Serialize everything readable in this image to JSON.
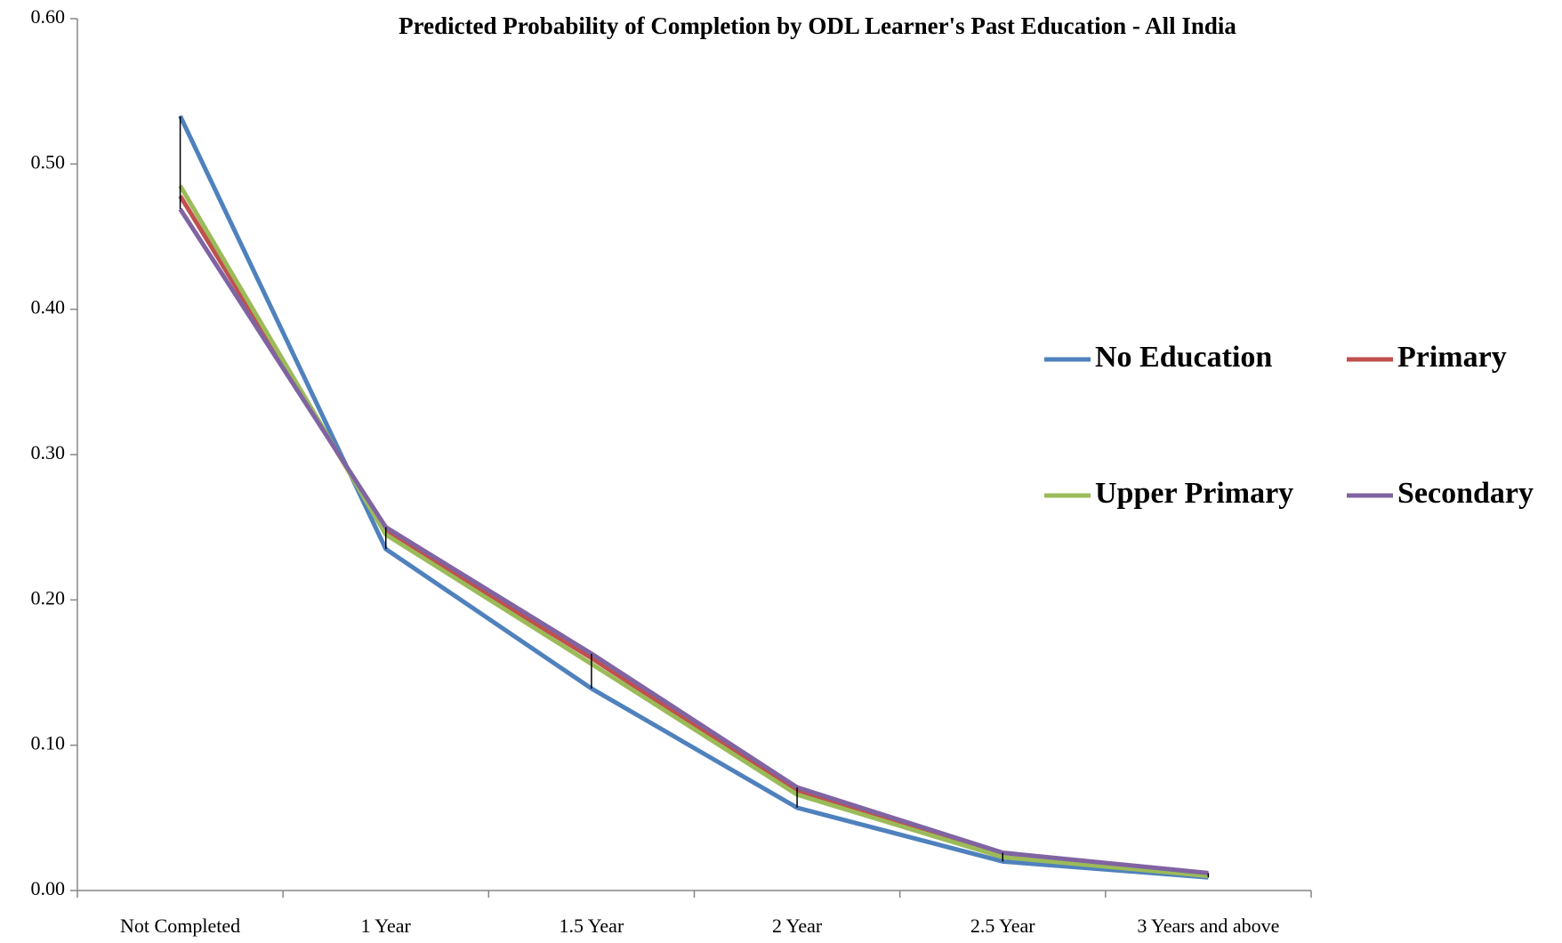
{
  "chart_data": {
    "type": "line",
    "title": "Predicted Probability of Completion by ODL Learner's Past Education - All India",
    "categories": [
      "Not Completed",
      "1 Year",
      "1.5 Year",
      "2 Year",
      "2.5 Year",
      "3 Years and above"
    ],
    "series": [
      {
        "name": "No Education",
        "color": "#4f81bd",
        "values": [
          0.533,
          0.235,
          0.139,
          0.057,
          0.02,
          0.009
        ]
      },
      {
        "name": "Primary",
        "color": "#c0504d",
        "values": [
          0.478,
          0.247,
          0.16,
          0.068,
          0.024,
          0.011
        ]
      },
      {
        "name": "Upper Primary",
        "color": "#9bbb59",
        "values": [
          0.485,
          0.245,
          0.156,
          0.066,
          0.023,
          0.01
        ]
      },
      {
        "name": "Secondary",
        "color": "#8064a2",
        "values": [
          0.469,
          0.25,
          0.163,
          0.071,
          0.026,
          0.012
        ]
      }
    ],
    "ylim": [
      0,
      0.6
    ],
    "yticks": [
      {
        "value": 0,
        "label": "0.00"
      },
      {
        "value": 0.1,
        "label": "0.10"
      },
      {
        "value": 0.2,
        "label": "0.20"
      },
      {
        "value": 0.3,
        "label": "0.30"
      },
      {
        "value": 0.4,
        "label": "0.40"
      },
      {
        "value": 0.5,
        "label": "0.50"
      },
      {
        "value": 0.6,
        "label": "0.60"
      }
    ],
    "high_low_lines": true,
    "legend": "right"
  }
}
